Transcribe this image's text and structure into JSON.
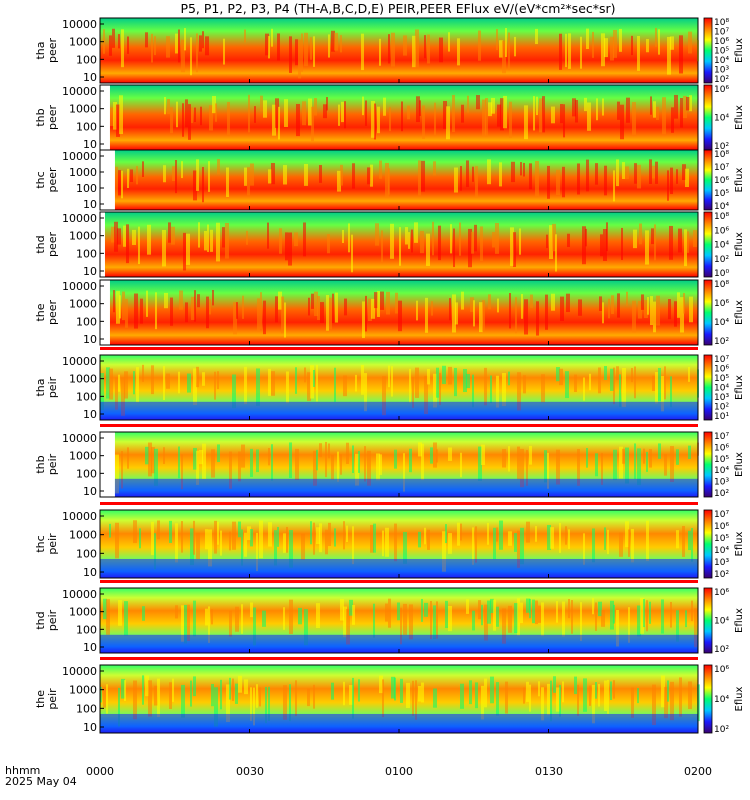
{
  "title": "P5, P1, P2, P3, P4 (TH-A,B,C,D,E) PEIR,PEER EFlux eV/(eV*cm²*sec*sr)",
  "time_axis": {
    "label": "hhmm",
    "date": "2025 May 04",
    "ticks": [
      "0000",
      "0030",
      "0100",
      "0130",
      "0200"
    ]
  },
  "colorbar_label": "Eflux",
  "colormap": [
    "#3a006e",
    "#1a1aff",
    "#00c8ff",
    "#00ff6e",
    "#ffff00",
    "#ff8000",
    "#ff0000"
  ],
  "chart_data": {
    "type": "heatmap",
    "x_range_hhmm": [
      "0000",
      "0200"
    ],
    "y_scale": "log",
    "panels": [
      {
        "label": [
          "tha",
          "peer"
        ],
        "yticks": [
          "10000",
          "1000",
          "100",
          "10"
        ],
        "cticks": [
          "10⁸",
          "10⁷",
          "10⁶",
          "10⁵",
          "10⁴",
          "10³",
          "10²"
        ],
        "gap_hhmm": "0000"
      },
      {
        "label": [
          "thb",
          "peer"
        ],
        "yticks": [
          "10000",
          "1000",
          "100",
          "10"
        ],
        "cticks": [
          "10⁶",
          "10⁴",
          "10²"
        ],
        "gap_hhmm": "0002"
      },
      {
        "label": [
          "thc",
          "peer"
        ],
        "yticks": [
          "10000",
          "1000",
          "100",
          "10"
        ],
        "cticks": [
          "10⁸",
          "10⁷",
          "10⁶",
          "10⁵",
          "10⁴"
        ],
        "gap_hhmm": "0003"
      },
      {
        "label": [
          "thd",
          "peer"
        ],
        "yticks": [
          "10000",
          "1000",
          "100",
          "10"
        ],
        "cticks": [
          "10⁸",
          "10⁶",
          "10⁴",
          "10²",
          "10⁰"
        ],
        "gap_hhmm": "0001"
      },
      {
        "label": [
          "the",
          "peer"
        ],
        "yticks": [
          "10000",
          "1000",
          "100",
          "10"
        ],
        "cticks": [
          "10⁸",
          "10⁶",
          "10⁴",
          "10²"
        ],
        "gap_hhmm": "0002"
      },
      {
        "label": [
          "tha",
          "peir"
        ],
        "yticks": [
          "10000",
          "1000",
          "100",
          "10"
        ],
        "cticks": [
          "10⁷",
          "10⁶",
          "10⁵",
          "10⁴",
          "10³",
          "10²",
          "10¹"
        ],
        "gap_hhmm": "0000"
      },
      {
        "label": [
          "thb",
          "peir"
        ],
        "yticks": [
          "10000",
          "1000",
          "100",
          "10"
        ],
        "cticks": [
          "10⁷",
          "10⁶",
          "10⁵",
          "10⁴",
          "10³",
          "10²"
        ],
        "gap_hhmm": "0003"
      },
      {
        "label": [
          "thc",
          "peir"
        ],
        "yticks": [
          "10000",
          "1000",
          "100",
          "10"
        ],
        "cticks": [
          "10⁷",
          "10⁶",
          "10⁵",
          "10⁴",
          "10³",
          "10²"
        ],
        "gap_hhmm": "0000"
      },
      {
        "label": [
          "thd",
          "peir"
        ],
        "yticks": [
          "10000",
          "1000",
          "100",
          "10"
        ],
        "cticks": [
          "10⁶",
          "10⁴",
          "10²"
        ],
        "gap_hhmm": "0000"
      },
      {
        "label": [
          "the",
          "peir"
        ],
        "yticks": [
          "10000",
          "1000",
          "100",
          "10"
        ],
        "cticks": [
          "10⁶",
          "10⁴",
          "10²"
        ],
        "gap_hhmm": "0000"
      }
    ]
  }
}
